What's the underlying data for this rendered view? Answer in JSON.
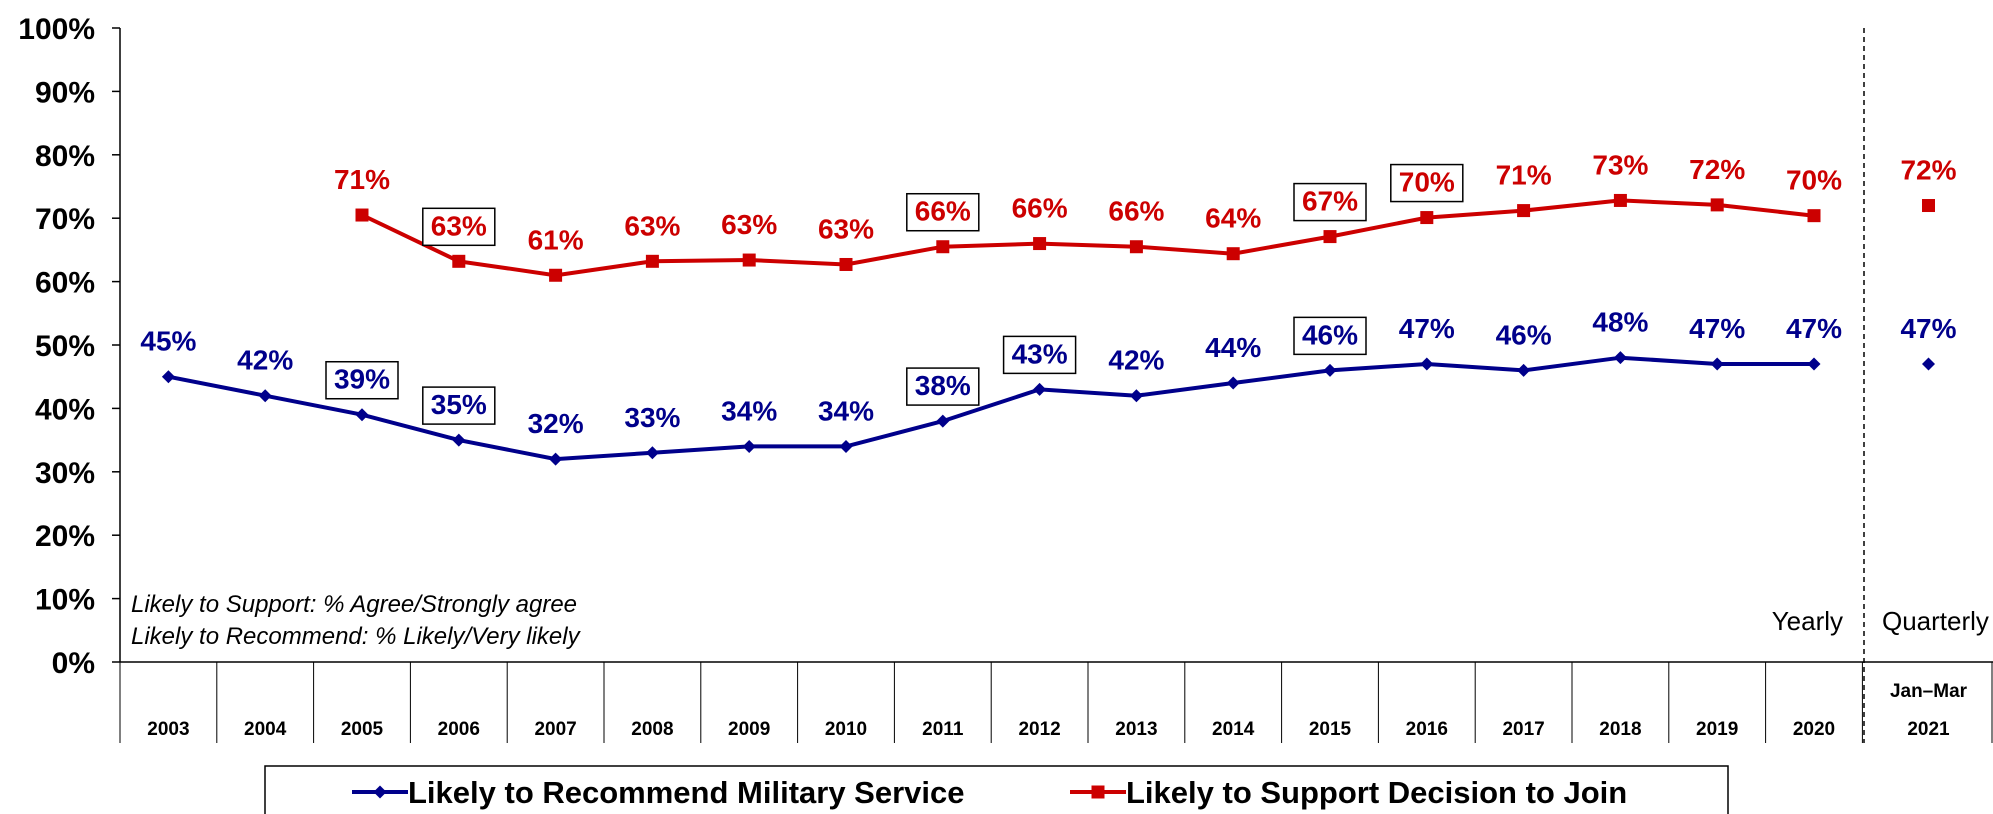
{
  "chart_data": {
    "type": "line",
    "x": [
      "2003",
      "2004",
      "2005",
      "2006",
      "2007",
      "2008",
      "2009",
      "2010",
      "2011",
      "2012",
      "2013",
      "2014",
      "2015",
      "2016",
      "2017",
      "2018",
      "2019",
      "2020"
    ],
    "quarterly": {
      "period": "Jan–Mar",
      "year": "2021"
    },
    "series": [
      {
        "name": "Likely to Recommend Military Service",
        "color": "#00008B",
        "marker": "diamond",
        "values": [
          45,
          42,
          39,
          35,
          32,
          33,
          34,
          34,
          38,
          43,
          42,
          44,
          46,
          47,
          46,
          48,
          47,
          47
        ],
        "labels": [
          "45%",
          "42%",
          "39%",
          "35%",
          "32%",
          "33%",
          "34%",
          "34%",
          "38%",
          "43%",
          "42%",
          "44%",
          "46%",
          "47%",
          "46%",
          "48%",
          "47%",
          "47%"
        ],
        "boxed": [
          false,
          false,
          true,
          true,
          false,
          false,
          false,
          false,
          true,
          true,
          false,
          false,
          true,
          false,
          false,
          false,
          false,
          false
        ],
        "quarterly_value": 47,
        "quarterly_label": "47%"
      },
      {
        "name": "Likely to Support Decision to Join",
        "color": "#CC0000",
        "marker": "square",
        "values": [
          null,
          null,
          70.5,
          63.2,
          61.0,
          63.2,
          63.4,
          62.7,
          65.5,
          66.0,
          65.5,
          64.4,
          67.1,
          70.1,
          71.2,
          72.8,
          72.1,
          70.4
        ],
        "labels": [
          null,
          null,
          "71%",
          "63%",
          "61%",
          "63%",
          "63%",
          "63%",
          "66%",
          "66%",
          "66%",
          "64%",
          "67%",
          "70%",
          "71%",
          "73%",
          "72%",
          "70%"
        ],
        "boxed": [
          false,
          false,
          false,
          true,
          false,
          false,
          false,
          false,
          true,
          false,
          false,
          false,
          true,
          true,
          false,
          false,
          false,
          false
        ],
        "quarterly_value": 72,
        "quarterly_label": "72%"
      }
    ],
    "yticks": [
      "0%",
      "10%",
      "20%",
      "30%",
      "40%",
      "50%",
      "60%",
      "70%",
      "80%",
      "90%",
      "100%"
    ],
    "ylim": [
      0,
      100
    ],
    "grid": false,
    "legend_position": "bottom",
    "panel_labels": {
      "yearly": "Yearly",
      "quarterly": "Quarterly"
    },
    "notes": [
      "Likely to Support:  % Agree/Strongly agree",
      "Likely to Recommend:  % Likely/Very likely"
    ]
  }
}
